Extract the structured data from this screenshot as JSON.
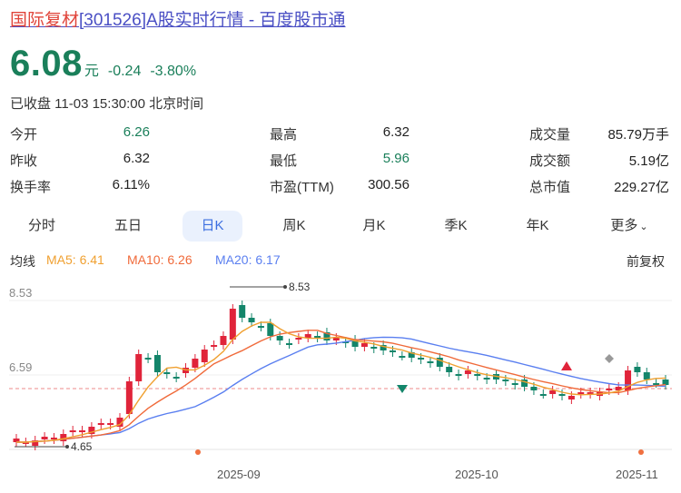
{
  "title": {
    "brand": "国际复材",
    "rest": "[301526]A股实时行情 - 百度股市通"
  },
  "quote": {
    "price": "6.08",
    "unit": "元",
    "change": "-0.24",
    "pct": "-3.80%",
    "status": "已收盘 11-03 15:30:00 北京时间"
  },
  "stats": {
    "open_label": "今开",
    "open": "6.26",
    "prev_label": "昨收",
    "prev": "6.32",
    "turnover_label": "换手率",
    "turnover": "6.11%",
    "high_label": "最高",
    "high": "6.32",
    "low_label": "最低",
    "low": "5.96",
    "pe_label": "市盈(TTM)",
    "pe": "300.56",
    "vol_label": "成交量",
    "vol": "85.79万手",
    "amt_label": "成交额",
    "amt": "5.19亿",
    "cap_label": "总市值",
    "cap": "229.27亿"
  },
  "tabs": [
    "分时",
    "五日",
    "日K",
    "周K",
    "月K",
    "季K",
    "年K",
    "更多"
  ],
  "active_tab": "日K",
  "ma": {
    "label": "均线",
    "ma5": "MA5: 6.41",
    "ma10": "MA10: 6.26",
    "ma20": "MA20: 6.17",
    "fq": "前复权"
  },
  "colors": {
    "up": "#e0243a",
    "down": "#13856a",
    "ma5": "#f0a030",
    "ma10": "#f06a3a",
    "ma20": "#5a7ff0",
    "link": "#4a4fc4"
  },
  "chart_data": {
    "type": "candlestick",
    "y_ticks": [
      "8.53",
      "6.59"
    ],
    "max_label": "8.53",
    "min_label": "4.65",
    "current_price": 6.08,
    "x_labels": [
      "2025-09",
      "2025-10",
      "2025-11"
    ]
  }
}
